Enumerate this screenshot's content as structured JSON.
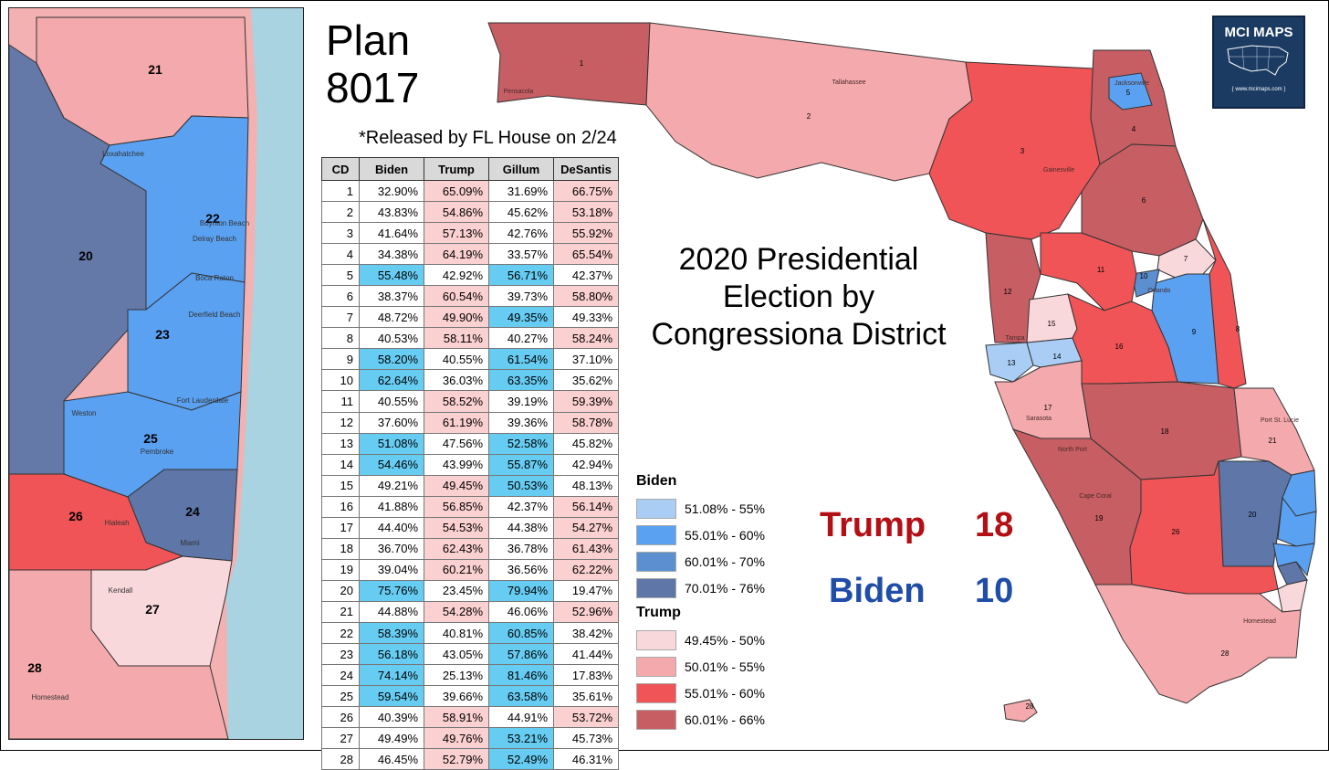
{
  "title_line1": "Plan",
  "title_line2": "8017",
  "subtitle": "*Released by FL House on 2/24",
  "map_title_lines": [
    "2020 Presidential",
    "Election by",
    "Congressiona District"
  ],
  "logo": {
    "text": "MCI MAPS",
    "url": "{ www.mcimaps.com }"
  },
  "tally": [
    {
      "party": "Trump",
      "count": "18",
      "color": "#b30f14"
    },
    {
      "party": "Biden",
      "count": "10",
      "color": "#1f4da8"
    }
  ],
  "table": {
    "headers": [
      "CD",
      "Biden",
      "Trump",
      "Gillum",
      "DeSantis"
    ],
    "rows": [
      [
        "1",
        "32.90%",
        "65.09%",
        "31.69%",
        "66.75%"
      ],
      [
        "2",
        "43.83%",
        "54.86%",
        "45.62%",
        "53.18%"
      ],
      [
        "3",
        "41.64%",
        "57.13%",
        "42.76%",
        "55.92%"
      ],
      [
        "4",
        "34.38%",
        "64.19%",
        "33.57%",
        "65.54%"
      ],
      [
        "5",
        "55.48%",
        "42.92%",
        "56.71%",
        "42.37%"
      ],
      [
        "6",
        "38.37%",
        "60.54%",
        "39.73%",
        "58.80%"
      ],
      [
        "7",
        "48.72%",
        "49.90%",
        "49.35%",
        "49.33%"
      ],
      [
        "8",
        "40.53%",
        "58.11%",
        "40.27%",
        "58.24%"
      ],
      [
        "9",
        "58.20%",
        "40.55%",
        "61.54%",
        "37.10%"
      ],
      [
        "10",
        "62.64%",
        "36.03%",
        "63.35%",
        "35.62%"
      ],
      [
        "11",
        "40.55%",
        "58.52%",
        "39.19%",
        "59.39%"
      ],
      [
        "12",
        "37.60%",
        "61.19%",
        "39.36%",
        "58.78%"
      ],
      [
        "13",
        "51.08%",
        "47.56%",
        "52.58%",
        "45.82%"
      ],
      [
        "14",
        "54.46%",
        "43.99%",
        "55.87%",
        "42.94%"
      ],
      [
        "15",
        "49.21%",
        "49.45%",
        "50.53%",
        "48.13%"
      ],
      [
        "16",
        "41.88%",
        "56.85%",
        "42.37%",
        "56.14%"
      ],
      [
        "17",
        "44.40%",
        "54.53%",
        "44.38%",
        "54.27%"
      ],
      [
        "18",
        "36.70%",
        "62.43%",
        "36.78%",
        "61.43%"
      ],
      [
        "19",
        "39.04%",
        "60.21%",
        "36.56%",
        "62.22%"
      ],
      [
        "20",
        "75.76%",
        "23.45%",
        "79.94%",
        "19.47%"
      ],
      [
        "21",
        "44.88%",
        "54.28%",
        "46.06%",
        "52.96%"
      ],
      [
        "22",
        "58.39%",
        "40.81%",
        "60.85%",
        "38.42%"
      ],
      [
        "23",
        "56.18%",
        "43.05%",
        "57.86%",
        "41.44%"
      ],
      [
        "24",
        "74.14%",
        "25.13%",
        "81.46%",
        "17.83%"
      ],
      [
        "25",
        "59.54%",
        "39.66%",
        "63.58%",
        "35.61%"
      ],
      [
        "26",
        "40.39%",
        "58.91%",
        "44.91%",
        "53.72%"
      ],
      [
        "27",
        "49.49%",
        "49.76%",
        "53.21%",
        "45.73%"
      ],
      [
        "28",
        "46.45%",
        "52.79%",
        "52.49%",
        "46.31%"
      ]
    ]
  },
  "legend": {
    "biden_title": "Biden",
    "biden": [
      {
        "label": "51.08% - 55%",
        "color": "#a9cdf4"
      },
      {
        "label": "55.01% - 60%",
        "color": "#5aa1f2"
      },
      {
        "label": "60.01% - 70%",
        "color": "#5c8fcf"
      },
      {
        "label": "70.01% - 76%",
        "color": "#5e77a8"
      }
    ],
    "trump_title": "Trump",
    "trump": [
      {
        "label": "49.45% - 50%",
        "color": "#f9d8db"
      },
      {
        "label": "50.01% - 55%",
        "color": "#f4aaac"
      },
      {
        "label": "55.01% - 60%",
        "color": "#f05457"
      },
      {
        "label": "60.01% - 66%",
        "color": "#c65e63"
      }
    ]
  },
  "fl_districts": [
    {
      "id": "1",
      "color": "#c65e63"
    },
    {
      "id": "2",
      "color": "#f4aaac"
    },
    {
      "id": "3",
      "color": "#f05457"
    },
    {
      "id": "4",
      "color": "#c65e63"
    },
    {
      "id": "5",
      "color": "#5aa1f2"
    },
    {
      "id": "6",
      "color": "#c65e63"
    },
    {
      "id": "7",
      "color": "#f9d8db"
    },
    {
      "id": "8",
      "color": "#f05457"
    },
    {
      "id": "9",
      "color": "#5aa1f2"
    },
    {
      "id": "10",
      "color": "#5c8fcf"
    },
    {
      "id": "11",
      "color": "#f05457"
    },
    {
      "id": "12",
      "color": "#c65e63"
    },
    {
      "id": "13",
      "color": "#a9cdf4"
    },
    {
      "id": "14",
      "color": "#a9cdf4"
    },
    {
      "id": "15",
      "color": "#f9d8db"
    },
    {
      "id": "16",
      "color": "#f05457"
    },
    {
      "id": "17",
      "color": "#f4aaac"
    },
    {
      "id": "18",
      "color": "#c65e63"
    },
    {
      "id": "19",
      "color": "#c65e63"
    },
    {
      "id": "20",
      "color": "#5e77a8"
    },
    {
      "id": "21",
      "color": "#f4aaac"
    },
    {
      "id": "22",
      "color": "#5aa1f2"
    },
    {
      "id": "23",
      "color": "#5aa1f2"
    },
    {
      "id": "24",
      "color": "#5e77a8"
    },
    {
      "id": "25",
      "color": "#5aa1f2"
    },
    {
      "id": "26",
      "color": "#f05457"
    },
    {
      "id": "27",
      "color": "#f9d8db"
    },
    {
      "id": "28",
      "color": "#f4aaac"
    }
  ],
  "inset_labels": [
    "21",
    "22",
    "20",
    "23",
    "25",
    "26",
    "24",
    "27",
    "28"
  ],
  "inset_place_labels": [
    "Loxahatchee",
    "Boca Raton",
    "Deerfield Beach",
    "Delray Beach",
    "Boynton Beach",
    "Fort Lauderdale",
    "Pembroke",
    "Hialeah",
    "Miami",
    "Kendall",
    "Homestead",
    "Weston"
  ],
  "fl_place_labels": [
    "Tallahassee",
    "Pensacola",
    "Gainesville",
    "Jacksonville",
    "Orlando",
    "Tampa",
    "Sarasota",
    "North Port",
    "Cape Coral",
    "Port St. Lucie",
    "Homestead"
  ]
}
